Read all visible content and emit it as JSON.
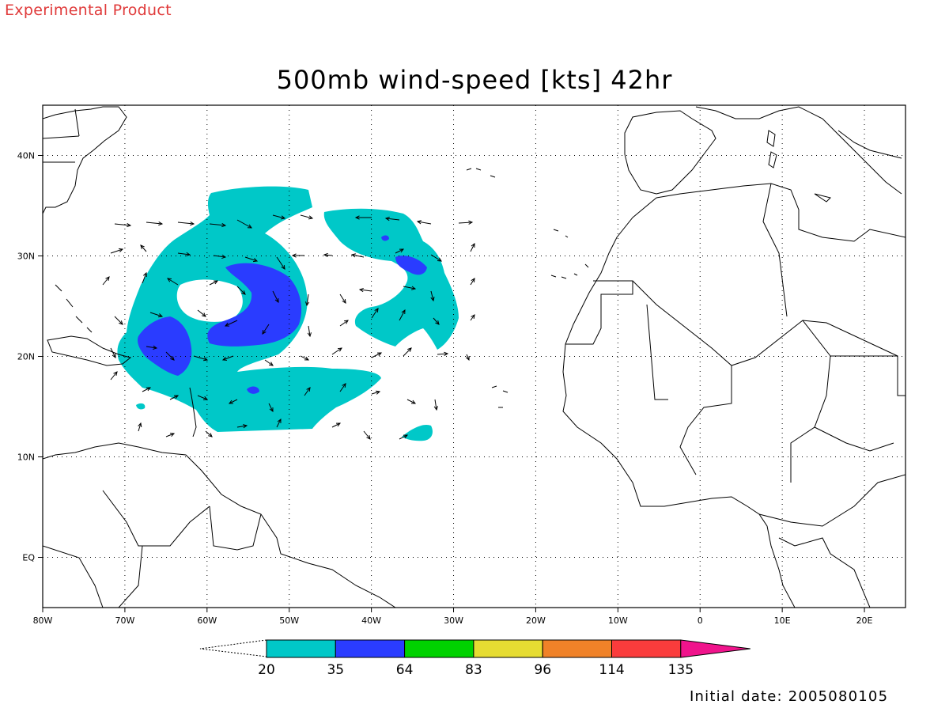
{
  "header": {
    "product_tag": "Experimental Product",
    "title": "500mb wind-speed [kts] 42hr"
  },
  "footer": {
    "initial_date": "Initial date: 2005080105"
  },
  "map": {
    "projection": "cylindrical equidistant",
    "lon_range": [
      -80,
      25
    ],
    "lat_range": [
      -5,
      45
    ],
    "grid": "dotted",
    "x_ticks": [
      "80W",
      "70W",
      "60W",
      "50W",
      "40W",
      "30W",
      "20W",
      "10W",
      "0",
      "10E",
      "20E"
    ],
    "y_ticks": [
      "40N",
      "30N",
      "20N",
      "10N",
      "EQ"
    ],
    "vector_overlay": "wind-arrows"
  },
  "colorbar": {
    "labels": [
      "20",
      "35",
      "64",
      "83",
      "96",
      "114",
      "135"
    ],
    "colors": [
      "#00c8c8",
      "#2a3cff",
      "#00d200",
      "#e6dc32",
      "#f08228",
      "#fa3c3c",
      "#f0148c"
    ],
    "low_end": "open-triangle",
    "high_end": "filled-triangle"
  },
  "colors": {
    "tag": "#e03a3a",
    "c20": "#00c8c8",
    "c35": "#2a3cff"
  }
}
